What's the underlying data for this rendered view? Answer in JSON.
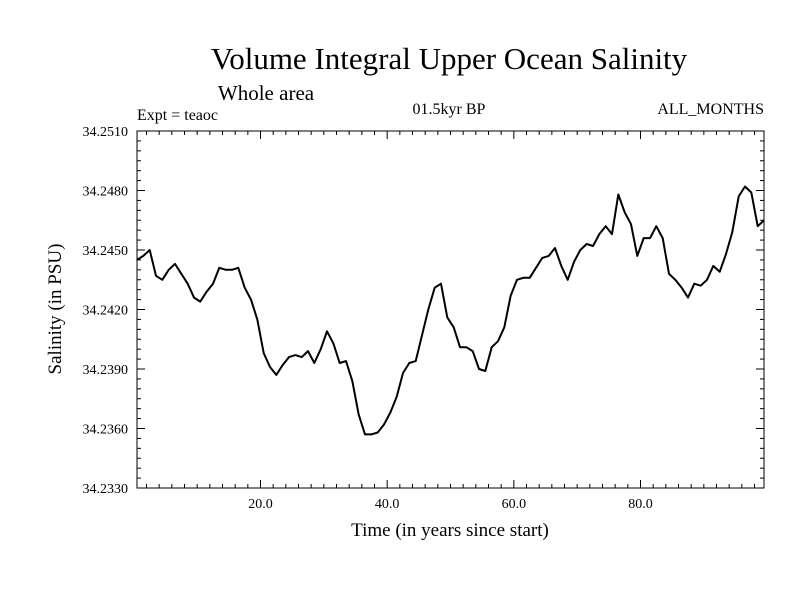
{
  "chart_data": {
    "type": "line",
    "title": "Volume Integral Upper Ocean Salinity",
    "subtitle": "Whole area",
    "expt_label": "Expt = teaoc",
    "period_label": "01.5kyr BP",
    "months_label": "ALL_MONTHS",
    "xlabel": "Time (in years since start)",
    "ylabel": "Salinity (in PSU)",
    "xlim": [
      0.5,
      99.5
    ],
    "ylim": [
      34.233,
      34.251
    ],
    "xticks": [
      20,
      40,
      60,
      80
    ],
    "xtick_labels": [
      "20.0",
      "40.0",
      "60.0",
      "80.0"
    ],
    "yticks": [
      34.233,
      34.236,
      34.239,
      34.242,
      34.245,
      34.248,
      34.251
    ],
    "ytick_labels": [
      "34.2330",
      "34.2360",
      "34.2390",
      "34.2420",
      "34.2450",
      "34.2480",
      "34.2510"
    ],
    "grid": false,
    "series": [
      {
        "name": "salinity",
        "x": [
          0.5,
          1.5,
          2.5,
          3.5,
          4.5,
          5.5,
          6.5,
          7.5,
          8.5,
          9.5,
          10.5,
          11.5,
          12.5,
          13.5,
          14.5,
          15.5,
          16.5,
          17.5,
          18.5,
          19.5,
          20.5,
          21.5,
          22.5,
          23.5,
          24.5,
          25.5,
          26.5,
          27.5,
          28.5,
          29.5,
          30.5,
          31.5,
          32.5,
          33.5,
          34.5,
          35.5,
          36.5,
          37.5,
          38.5,
          39.5,
          40.5,
          41.5,
          42.5,
          43.5,
          44.5,
          45.5,
          46.5,
          47.5,
          48.5,
          49.5,
          50.5,
          51.5,
          52.5,
          53.5,
          54.5,
          55.5,
          56.5,
          57.5,
          58.5,
          59.5,
          60.5,
          61.5,
          62.5,
          63.5,
          64.5,
          65.5,
          66.5,
          67.5,
          68.5,
          69.5,
          70.5,
          71.5,
          72.5,
          73.5,
          74.5,
          75.5,
          76.5,
          77.5,
          78.5,
          79.5,
          80.5,
          81.5,
          82.5,
          83.5,
          84.5,
          85.5,
          86.5,
          87.5,
          88.5,
          89.5,
          90.5,
          91.5,
          92.5,
          93.5,
          94.5,
          95.5,
          96.5,
          97.5,
          98.5,
          99.5
        ],
        "values": [
          34.2445,
          34.2447,
          34.245,
          34.2437,
          34.2435,
          34.244,
          34.2443,
          34.2438,
          34.2433,
          34.2426,
          34.2424,
          34.2429,
          34.2433,
          34.2441,
          34.244,
          34.244,
          34.2441,
          34.2431,
          34.2425,
          34.2415,
          34.2398,
          34.2391,
          34.2387,
          34.2392,
          34.2396,
          34.2397,
          34.2396,
          34.2399,
          34.2393,
          34.24,
          34.2409,
          34.2403,
          34.2393,
          34.2394,
          34.2384,
          34.2367,
          34.2357,
          34.2357,
          34.2358,
          34.2362,
          34.2368,
          34.2376,
          34.2388,
          34.2393,
          34.2394,
          34.2407,
          34.242,
          34.2431,
          34.2433,
          34.2416,
          34.2411,
          34.2401,
          34.2401,
          34.2399,
          34.239,
          34.2389,
          34.2401,
          34.2404,
          34.2411,
          34.2427,
          34.2435,
          34.2436,
          34.2436,
          34.2441,
          34.2446,
          34.2447,
          34.2451,
          34.2442,
          34.2435,
          34.2444,
          34.245,
          34.2453,
          34.2452,
          34.2458,
          34.2462,
          34.2458,
          34.2478,
          34.2469,
          34.2463,
          34.2447,
          34.2456,
          34.2456,
          34.2462,
          34.2456,
          34.2438,
          34.2435,
          34.2431,
          34.2426,
          34.2433,
          34.2432,
          34.2435,
          34.2442,
          34.2439,
          34.2448,
          34.2459,
          34.2477,
          34.2482,
          34.2479,
          34.2462,
          34.2465
        ]
      }
    ]
  }
}
